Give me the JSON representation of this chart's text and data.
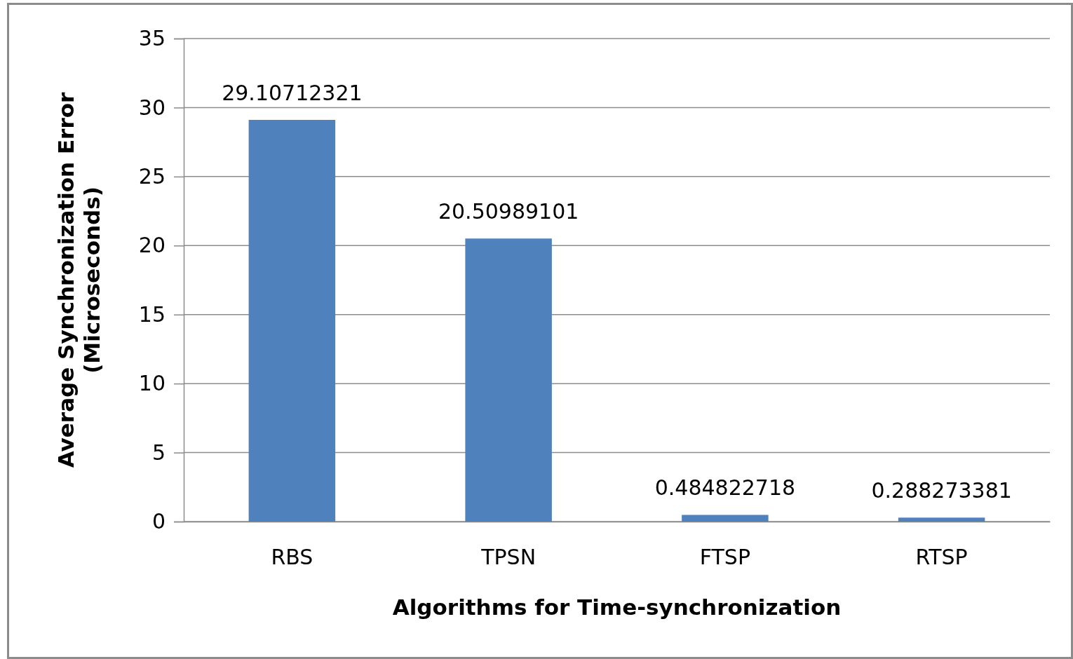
{
  "chart_data": {
    "type": "bar",
    "categories": [
      "RBS",
      "TPSN",
      "FTSP",
      "RTSP"
    ],
    "values": [
      29.10712321,
      20.50989101,
      0.484822718,
      0.288273381
    ],
    "color": "#4f81bd",
    "data_labels": true,
    "xlabel": "Algorithms for Time-synchronization",
    "ylabel": "Average Synchronization Error\n(Microseconds)",
    "ylim": [
      0,
      35
    ],
    "yticks": [
      0,
      5,
      10,
      15,
      20,
      25,
      30,
      35
    ],
    "grid": "y"
  }
}
